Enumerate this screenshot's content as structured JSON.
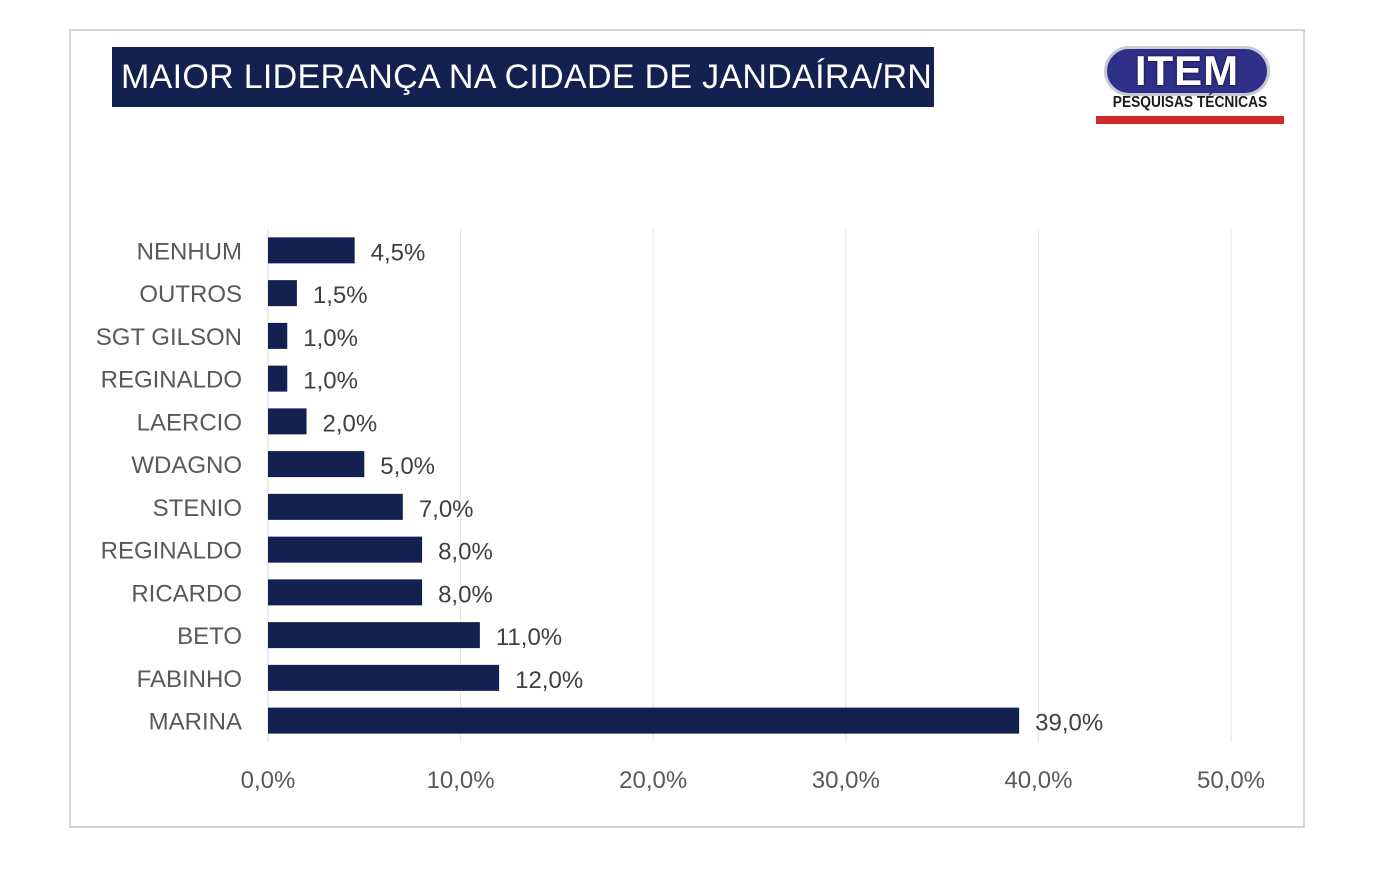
{
  "header": {
    "title": "MAIOR LIDERANÇA NA CIDADE DE JANDAÍRA/RN"
  },
  "logo": {
    "main": "ITEM",
    "sub": "PESQUISAS TÉCNICAS",
    "colors": {
      "oval": "#2e2f86",
      "bar": "#d42b2b"
    }
  },
  "chart_data": {
    "type": "bar",
    "orientation": "horizontal",
    "title": "MAIOR LIDERANÇA NA CIDADE DE JANDAÍRA/RN",
    "categories": [
      "NENHUM",
      "OUTROS",
      "SGT GILSON",
      "REGINALDO",
      "LAERCIO",
      "WDAGNO",
      "STENIO",
      "REGINALDO",
      "RICARDO",
      "BETO",
      "FABINHO",
      "MARINA"
    ],
    "values": [
      4.5,
      1.5,
      1.0,
      1.0,
      2.0,
      5.0,
      7.0,
      8.0,
      8.0,
      11.0,
      12.0,
      39.0
    ],
    "data_labels": [
      "4,5%",
      "1,5%",
      "1,0%",
      "1,0%",
      "2,0%",
      "5,0%",
      "7,0%",
      "8,0%",
      "8,0%",
      "11,0%",
      "12,0%",
      "39,0%"
    ],
    "xlim": [
      0,
      50
    ],
    "x_ticks": [
      0,
      10,
      20,
      30,
      40,
      50
    ],
    "x_tick_labels": [
      "0,0%",
      "10,0%",
      "20,0%",
      "30,0%",
      "40,0%",
      "50,0%"
    ],
    "xlabel": "",
    "ylabel": "",
    "grid": true,
    "bar_color": "#12214f"
  }
}
